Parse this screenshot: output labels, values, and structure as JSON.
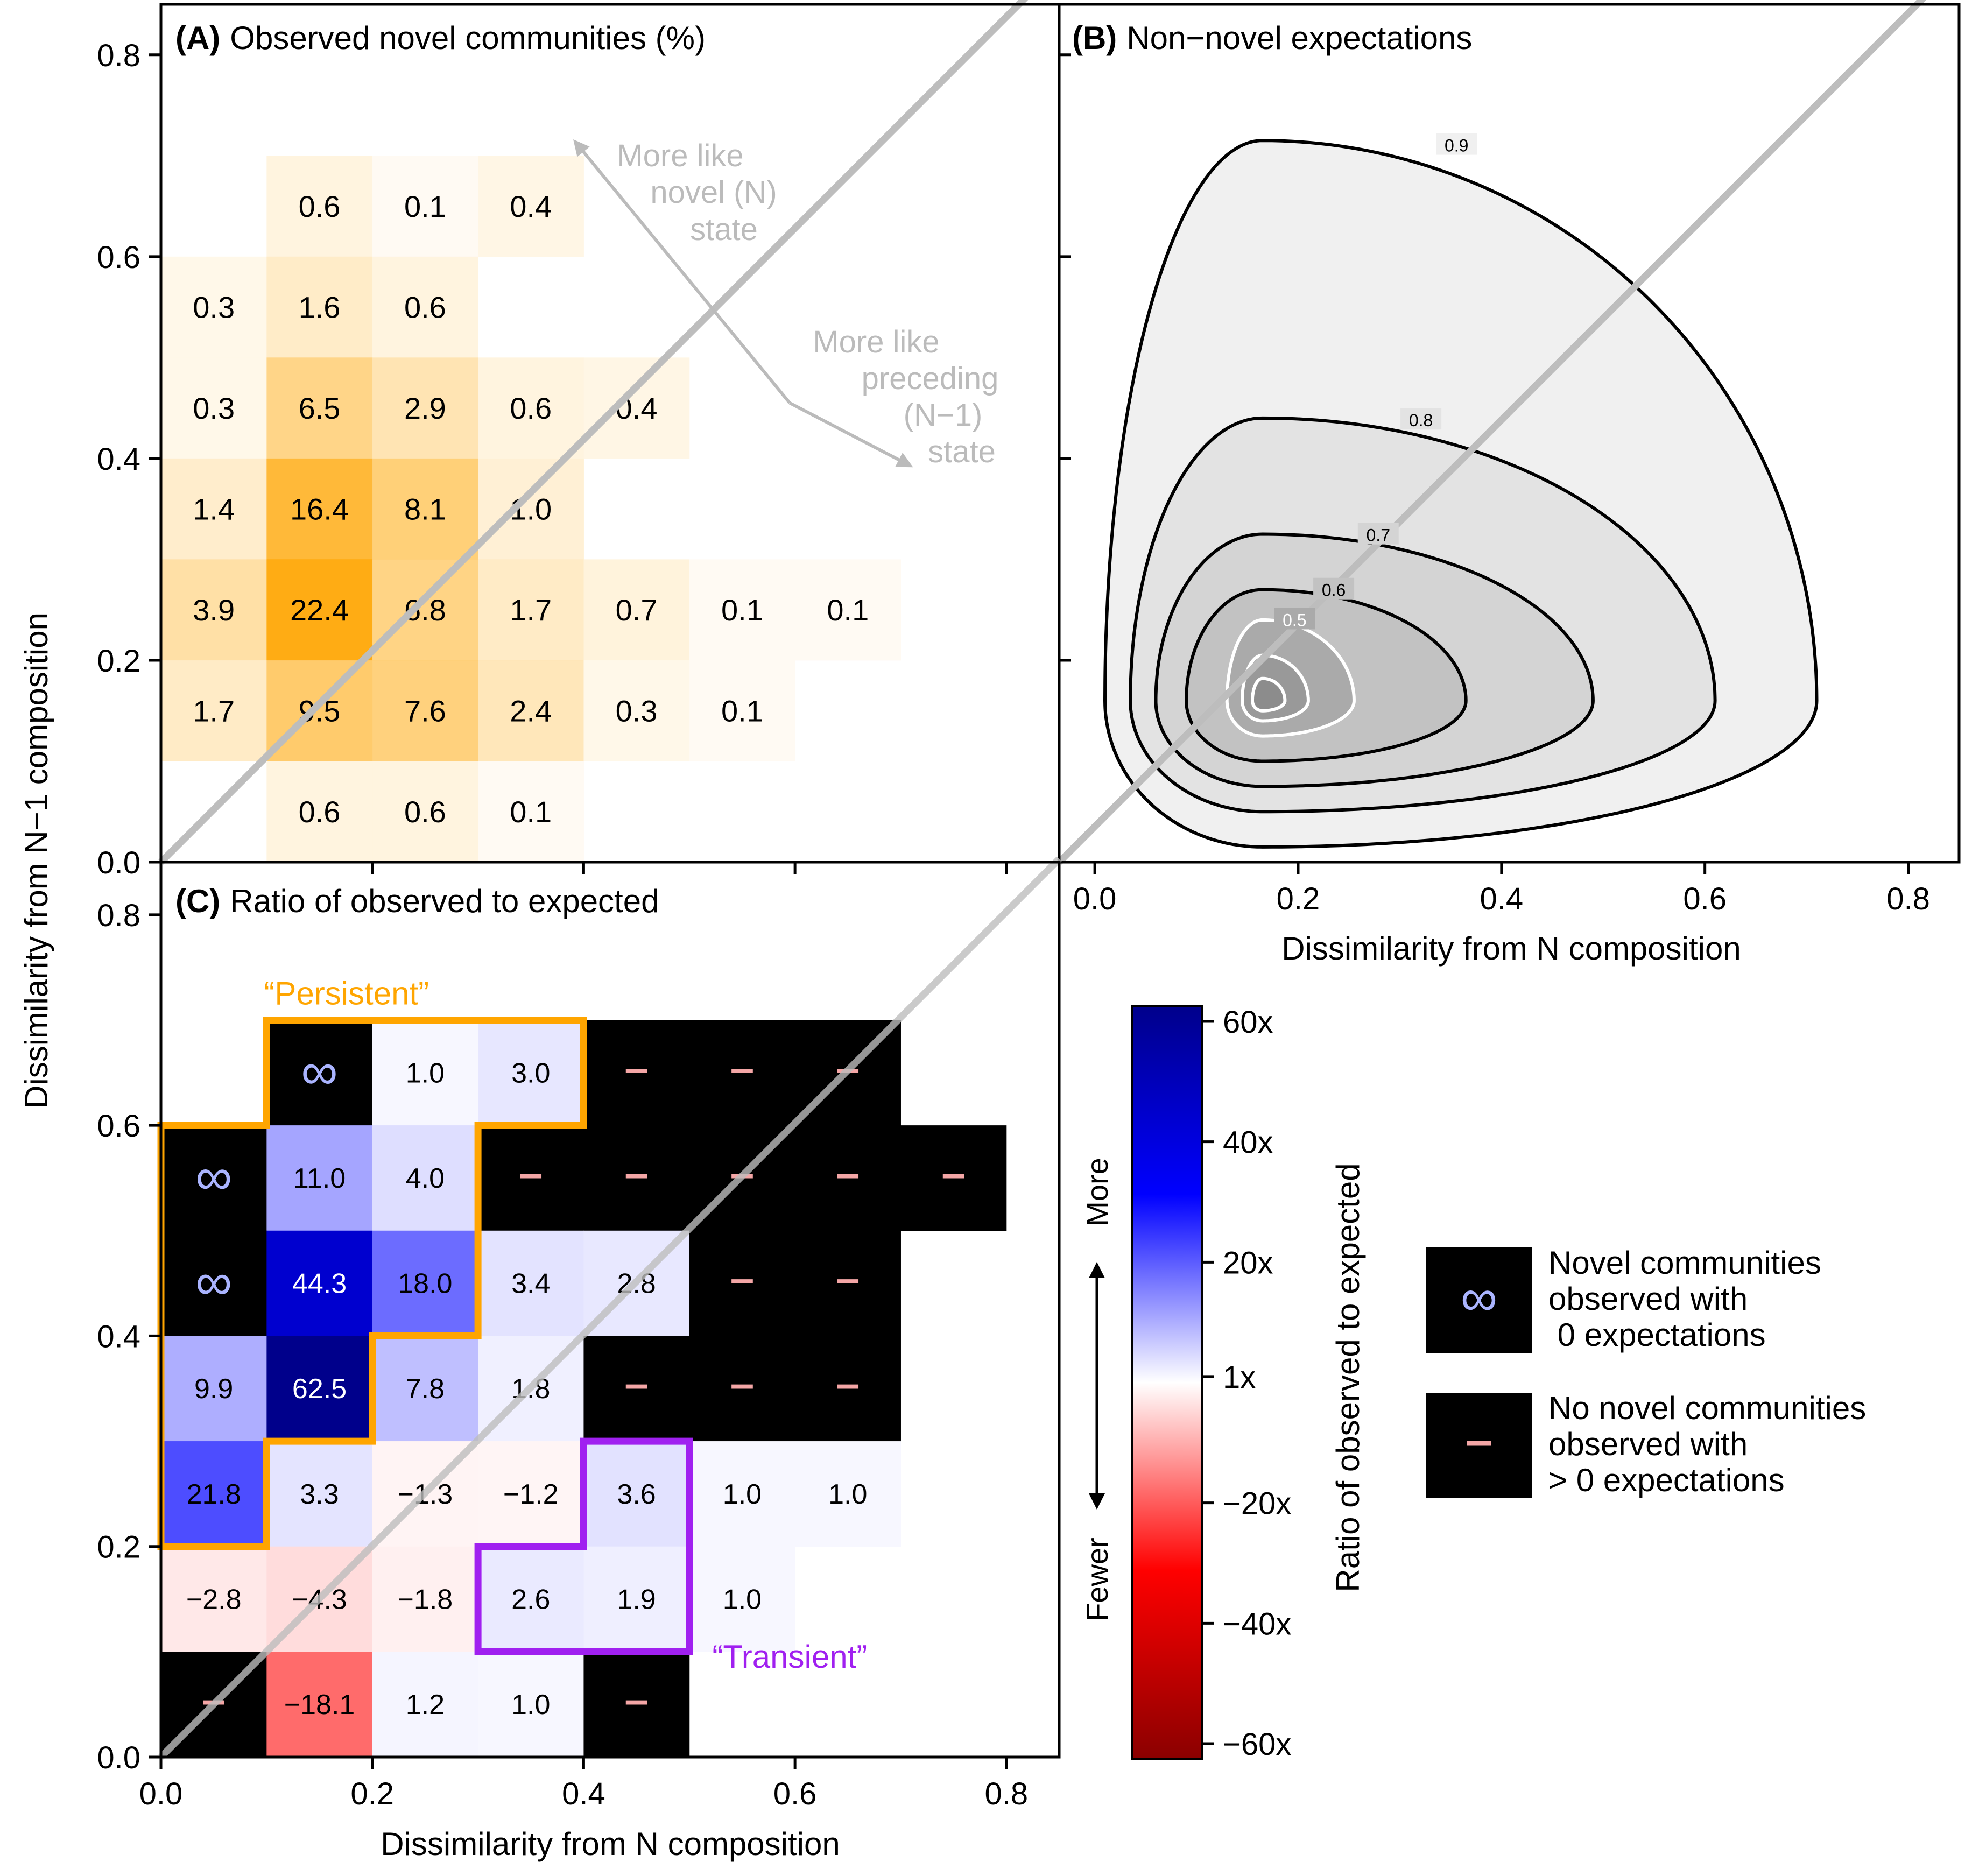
{
  "axis_labels": {
    "ylabel": "Dissimilarity from N−1 composition",
    "xlabel_b": "Dissimilarity from N composition",
    "xlabel_c": "Dissimilarity from N composition"
  },
  "ticks": {
    "values": [
      0.0,
      0.2,
      0.4,
      0.6,
      0.8
    ],
    "labels": [
      "0.0",
      "0.2",
      "0.4",
      "0.6",
      "0.8"
    ]
  },
  "colors": {
    "orange_max": "#ffa500",
    "diagonal": "#bdbdbd",
    "arrow_text": "#bbbbbb",
    "persistent": "#ffa500",
    "transient": "#a020f0",
    "infinity": "#aab4ff",
    "dash": "#f4a6a6",
    "contour_fill": "#ececec",
    "contour_line": "#000000",
    "contour_inner": "#ffffff"
  },
  "chart_data": [
    {
      "panel": "A",
      "type": "heatmap",
      "title_letter": "(A)",
      "title_text": "Observed novel communities (%)",
      "bin_size": 0.1,
      "max_value": 22.4,
      "cells": [
        {
          "x": 0.1,
          "y": 0.6,
          "v": "0.6"
        },
        {
          "x": 0.2,
          "y": 0.6,
          "v": "0.1"
        },
        {
          "x": 0.3,
          "y": 0.6,
          "v": "0.4"
        },
        {
          "x": 0.0,
          "y": 0.5,
          "v": "0.3"
        },
        {
          "x": 0.1,
          "y": 0.5,
          "v": "1.6"
        },
        {
          "x": 0.2,
          "y": 0.5,
          "v": "0.6"
        },
        {
          "x": 0.0,
          "y": 0.4,
          "v": "0.3"
        },
        {
          "x": 0.1,
          "y": 0.4,
          "v": "6.5"
        },
        {
          "x": 0.2,
          "y": 0.4,
          "v": "2.9"
        },
        {
          "x": 0.3,
          "y": 0.4,
          "v": "0.6"
        },
        {
          "x": 0.4,
          "y": 0.4,
          "v": "0.4"
        },
        {
          "x": 0.0,
          "y": 0.3,
          "v": "1.4"
        },
        {
          "x": 0.1,
          "y": 0.3,
          "v": "16.4"
        },
        {
          "x": 0.2,
          "y": 0.3,
          "v": "8.1"
        },
        {
          "x": 0.3,
          "y": 0.3,
          "v": "1.0"
        },
        {
          "x": 0.0,
          "y": 0.2,
          "v": "3.9"
        },
        {
          "x": 0.1,
          "y": 0.2,
          "v": "22.4"
        },
        {
          "x": 0.2,
          "y": 0.2,
          "v": "6.8"
        },
        {
          "x": 0.3,
          "y": 0.2,
          "v": "1.7"
        },
        {
          "x": 0.4,
          "y": 0.2,
          "v": "0.7"
        },
        {
          "x": 0.5,
          "y": 0.2,
          "v": "0.1"
        },
        {
          "x": 0.6,
          "y": 0.2,
          "v": "0.1"
        },
        {
          "x": 0.0,
          "y": 0.1,
          "v": "1.7"
        },
        {
          "x": 0.1,
          "y": 0.1,
          "v": "9.5"
        },
        {
          "x": 0.2,
          "y": 0.1,
          "v": "7.6"
        },
        {
          "x": 0.3,
          "y": 0.1,
          "v": "2.4"
        },
        {
          "x": 0.4,
          "y": 0.1,
          "v": "0.3"
        },
        {
          "x": 0.5,
          "y": 0.1,
          "v": "0.1"
        },
        {
          "x": 0.1,
          "y": 0.0,
          "v": "0.6"
        },
        {
          "x": 0.2,
          "y": 0.0,
          "v": "0.6"
        },
        {
          "x": 0.3,
          "y": 0.0,
          "v": "0.1"
        }
      ],
      "annotations": {
        "up_lines": [
          "More like",
          "novel (N)",
          "state"
        ],
        "down_lines": [
          "More like",
          "preceding",
          "(N−1)",
          "state"
        ],
        "arrow_from": [
          0.595,
          0.455
        ],
        "arrow_to": [
          0.395,
          0.71
        ],
        "arrow_to2": [
          0.705,
          0.395
        ]
      }
    },
    {
      "panel": "B",
      "type": "contour",
      "title_letter": "(B)",
      "title_text": "Non−novel expectations",
      "center": [
        0.165,
        0.16
      ],
      "levels": [
        {
          "level": 0.9,
          "label": "0.9",
          "left": 0.155,
          "right": 0.545,
          "down": 0.145,
          "up": 0.555,
          "lean": 0.44,
          "shade": "#f0f0f0"
        },
        {
          "level": 0.8,
          "label": "0.8",
          "left": 0.13,
          "right": 0.445,
          "down": 0.11,
          "up": 0.28,
          "lean": 0.36,
          "shade": "#e3e3e3"
        },
        {
          "level": 0.7,
          "label": "0.7",
          "left": 0.105,
          "right": 0.325,
          "down": 0.085,
          "up": 0.165,
          "lean": 0.24,
          "shade": "#d4d4d4"
        },
        {
          "level": 0.6,
          "label": "0.6",
          "left": 0.075,
          "right": 0.2,
          "down": 0.06,
          "up": 0.11,
          "lean": 0.12,
          "shade": "#c2c2c2"
        },
        {
          "level": 0.5,
          "label": "0.5",
          "left": 0.035,
          "right": 0.09,
          "down": 0.035,
          "up": 0.08,
          "lean": 0.05,
          "shade": "#aaaaaa"
        },
        {
          "level": 0.4,
          "label": "",
          "left": 0.02,
          "right": 0.045,
          "down": 0.02,
          "up": 0.045,
          "lean": 0.0,
          "shade": "#999999"
        },
        {
          "level": 0.3,
          "label": "",
          "left": 0.01,
          "right": 0.022,
          "down": 0.01,
          "up": 0.022,
          "lean": 0.0,
          "shade": "#8c8c8c"
        }
      ]
    },
    {
      "panel": "C",
      "type": "heatmap",
      "title_letter": "(C)",
      "title_text": "Ratio of observed to expected",
      "bin_size": 0.1,
      "cells": [
        {
          "x": 0.1,
          "y": 0.6,
          "v": "∞"
        },
        {
          "x": 0.2,
          "y": 0.6,
          "v": "1.0"
        },
        {
          "x": 0.3,
          "y": 0.6,
          "v": "3.0"
        },
        {
          "x": 0.4,
          "y": 0.6,
          "v": "–"
        },
        {
          "x": 0.5,
          "y": 0.6,
          "v": "–"
        },
        {
          "x": 0.6,
          "y": 0.6,
          "v": "–"
        },
        {
          "x": 0.0,
          "y": 0.5,
          "v": "∞"
        },
        {
          "x": 0.1,
          "y": 0.5,
          "v": "11.0"
        },
        {
          "x": 0.2,
          "y": 0.5,
          "v": "4.0"
        },
        {
          "x": 0.3,
          "y": 0.5,
          "v": "–"
        },
        {
          "x": 0.4,
          "y": 0.5,
          "v": "–"
        },
        {
          "x": 0.5,
          "y": 0.5,
          "v": "–"
        },
        {
          "x": 0.6,
          "y": 0.5,
          "v": "–"
        },
        {
          "x": 0.7,
          "y": 0.5,
          "v": "–"
        },
        {
          "x": 0.0,
          "y": 0.4,
          "v": "∞"
        },
        {
          "x": 0.1,
          "y": 0.4,
          "v": "44.3"
        },
        {
          "x": 0.2,
          "y": 0.4,
          "v": "18.0"
        },
        {
          "x": 0.3,
          "y": 0.4,
          "v": "3.4"
        },
        {
          "x": 0.4,
          "y": 0.4,
          "v": "2.8"
        },
        {
          "x": 0.5,
          "y": 0.4,
          "v": "–"
        },
        {
          "x": 0.6,
          "y": 0.4,
          "v": "–"
        },
        {
          "x": 0.0,
          "y": 0.3,
          "v": "9.9"
        },
        {
          "x": 0.1,
          "y": 0.3,
          "v": "62.5"
        },
        {
          "x": 0.2,
          "y": 0.3,
          "v": "7.8"
        },
        {
          "x": 0.3,
          "y": 0.3,
          "v": "1.8"
        },
        {
          "x": 0.4,
          "y": 0.3,
          "v": "–"
        },
        {
          "x": 0.5,
          "y": 0.3,
          "v": "–"
        },
        {
          "x": 0.6,
          "y": 0.3,
          "v": "–"
        },
        {
          "x": 0.0,
          "y": 0.2,
          "v": "21.8"
        },
        {
          "x": 0.1,
          "y": 0.2,
          "v": "3.3"
        },
        {
          "x": 0.2,
          "y": 0.2,
          "v": "−1.3"
        },
        {
          "x": 0.3,
          "y": 0.2,
          "v": "−1.2"
        },
        {
          "x": 0.4,
          "y": 0.2,
          "v": "3.6"
        },
        {
          "x": 0.5,
          "y": 0.2,
          "v": "1.0"
        },
        {
          "x": 0.6,
          "y": 0.2,
          "v": "1.0"
        },
        {
          "x": 0.0,
          "y": 0.1,
          "v": "−2.8"
        },
        {
          "x": 0.1,
          "y": 0.1,
          "v": "−4.3"
        },
        {
          "x": 0.2,
          "y": 0.1,
          "v": "−1.8"
        },
        {
          "x": 0.3,
          "y": 0.1,
          "v": "2.6"
        },
        {
          "x": 0.4,
          "y": 0.1,
          "v": "1.9"
        },
        {
          "x": 0.5,
          "y": 0.1,
          "v": "1.0"
        },
        {
          "x": 0.0,
          "y": 0.0,
          "v": "–"
        },
        {
          "x": 0.1,
          "y": 0.0,
          "v": "−18.1"
        },
        {
          "x": 0.2,
          "y": 0.0,
          "v": "1.2"
        },
        {
          "x": 0.3,
          "y": 0.0,
          "v": "1.0"
        },
        {
          "x": 0.4,
          "y": 0.0,
          "v": "–"
        }
      ],
      "regions": [
        {
          "label": "“Persistent”",
          "color": "#ffa500",
          "outline": [
            [
              0.0,
              0.2
            ],
            [
              0.1,
              0.2
            ],
            [
              0.1,
              0.3
            ],
            [
              0.2,
              0.3
            ],
            [
              0.2,
              0.4
            ],
            [
              0.3,
              0.4
            ],
            [
              0.3,
              0.6
            ],
            [
              0.4,
              0.6
            ],
            [
              0.4,
              0.7
            ],
            [
              0.1,
              0.7
            ],
            [
              0.1,
              0.6
            ],
            [
              0.0,
              0.6
            ]
          ],
          "label_at": [
            0.2,
            0.725
          ]
        },
        {
          "label": "“Transient”",
          "color": "#a020f0",
          "outline": [
            [
              0.3,
              0.1
            ],
            [
              0.5,
              0.1
            ],
            [
              0.5,
              0.3
            ],
            [
              0.4,
              0.3
            ],
            [
              0.4,
              0.2
            ],
            [
              0.3,
              0.2
            ]
          ],
          "label_at": [
            0.595,
            0.095
          ]
        }
      ]
    },
    {
      "panel": "colorbar",
      "type": "heatmap",
      "ylabel": "Ratio of observed to expected",
      "range": [
        -62.5,
        62.5
      ],
      "ticks": [
        60,
        40,
        20,
        1,
        -20,
        -40,
        -60
      ],
      "tick_labels": [
        "60x",
        "40x",
        "20x",
        "1x",
        "−20x",
        "−40x",
        "−60x"
      ],
      "more_label": "More",
      "fewer_label": "Fewer"
    }
  ],
  "legend": {
    "items": [
      {
        "symbol": "∞",
        "lines": [
          "Novel communities",
          "observed with",
          " 0 expectations"
        ]
      },
      {
        "symbol": "–",
        "lines": [
          "No novel communities",
          "observed with",
          "> 0 expectations"
        ]
      }
    ]
  }
}
